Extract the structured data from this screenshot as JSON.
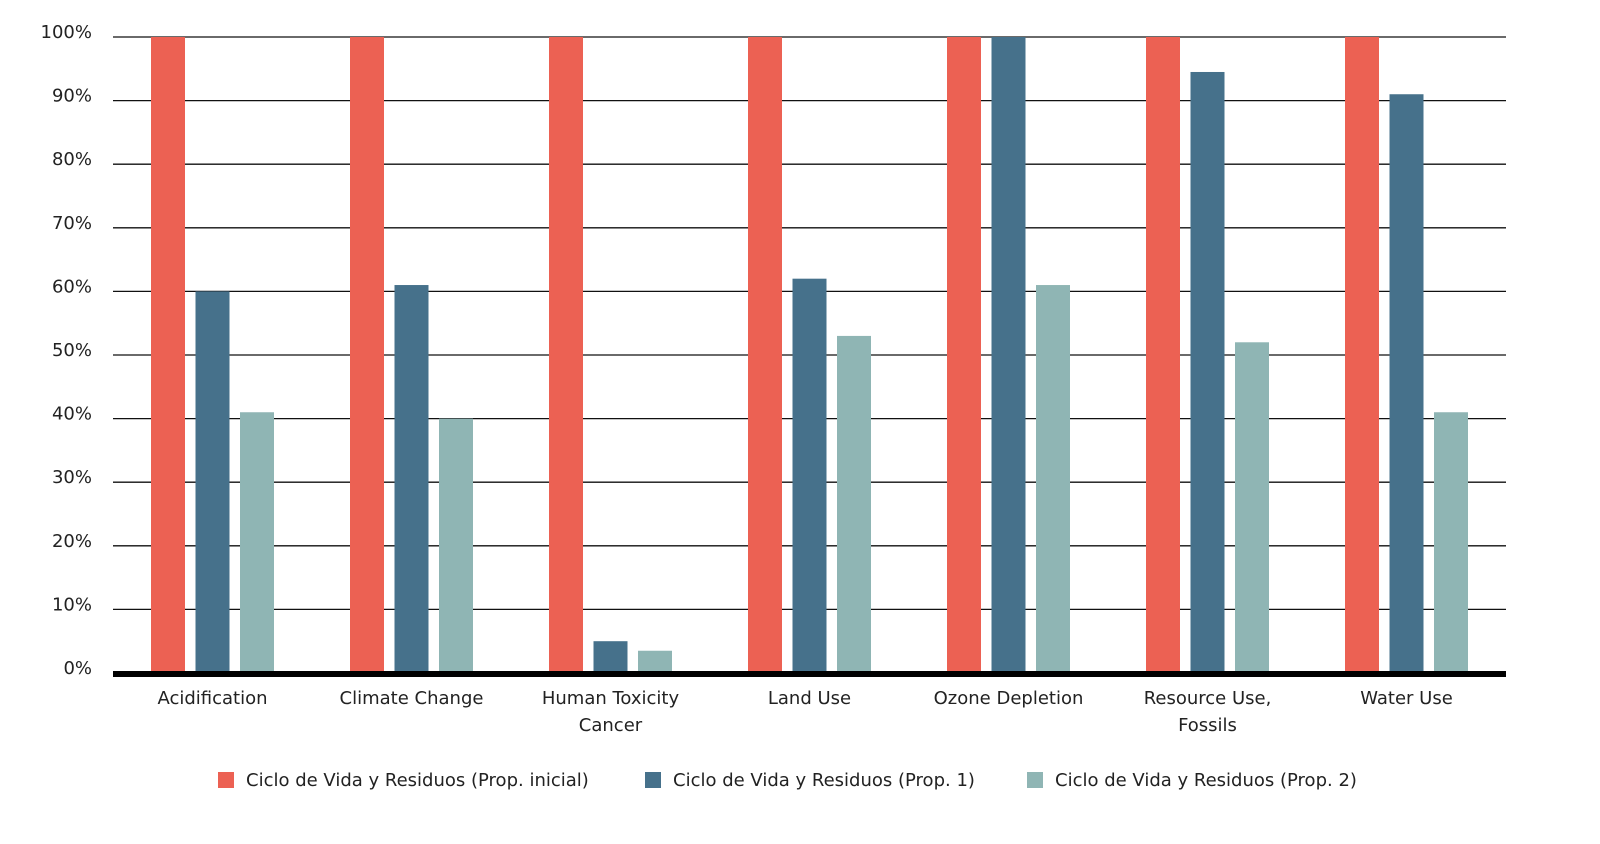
{
  "chart_data": {
    "type": "bar",
    "categories": [
      "Acidification",
      "Climate Change",
      "Human Toxicity\nCancer",
      "Land Use",
      "Ozone Depletion",
      "Resource Use,\nFossils",
      "Water Use"
    ],
    "series": [
      {
        "name": "Ciclo de Vida y Residuos (Prop. inicial)",
        "color": "#ec6153",
        "values": [
          100,
          100,
          100,
          100,
          100,
          100,
          100
        ]
      },
      {
        "name": "Ciclo de Vida y Residuos (Prop. 1)",
        "color": "#46718b",
        "values": [
          60,
          61,
          5,
          62,
          100,
          94.5,
          91
        ]
      },
      {
        "name": "Ciclo de Vida y Residuos (Prop. 2)",
        "color": "#8fb5b4",
        "values": [
          41,
          40,
          3.5,
          53,
          61,
          52,
          41
        ]
      }
    ],
    "ylim": [
      0,
      100
    ],
    "yticks": [
      {
        "value": 0,
        "label": "0%"
      },
      {
        "value": 10,
        "label": "10%"
      },
      {
        "value": 20,
        "label": "20%"
      },
      {
        "value": 30,
        "label": "30%"
      },
      {
        "value": 40,
        "label": "40%"
      },
      {
        "value": 50,
        "label": "50%"
      },
      {
        "value": 60,
        "label": "60%"
      },
      {
        "value": 70,
        "label": "70%"
      },
      {
        "value": 80,
        "label": "80%"
      },
      {
        "value": 90,
        "label": "90%"
      },
      {
        "value": 100,
        "label": "100%"
      }
    ],
    "grid": true,
    "legend": "bottom"
  }
}
